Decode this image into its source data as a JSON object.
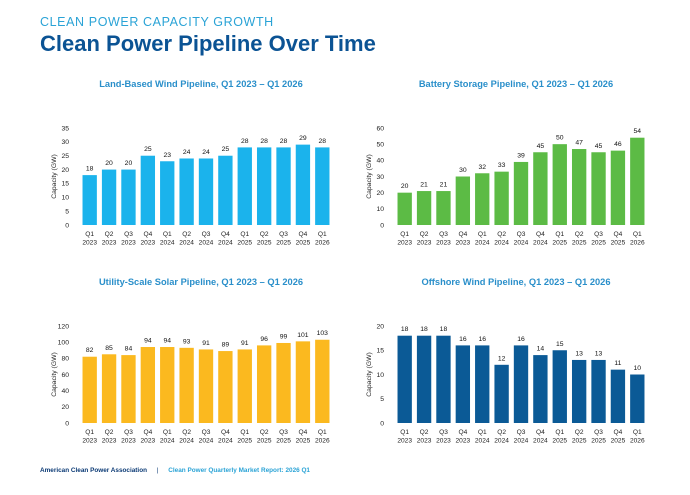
{
  "header": {
    "kicker": "CLEAN POWER CAPACITY GROWTH",
    "title": "Clean Power Pipeline Over Time"
  },
  "footer": {
    "org": "American Clean Power Association",
    "separator": "|",
    "report": "Clean Power Quarterly Market Report: 2026 Q1"
  },
  "chart_data": [
    {
      "type": "bar",
      "title": "Land-Based Wind Pipeline, Q1 2023 – Q1 2026",
      "ylabel": "Capacity (GW)",
      "xlabel": "",
      "ylim": [
        0,
        35
      ],
      "yticks": [
        0,
        5,
        10,
        15,
        20,
        25,
        30,
        35
      ],
      "grid": false,
      "color": "#1bb3ec",
      "categories": [
        [
          "Q1",
          "2023"
        ],
        [
          "Q2",
          "2023"
        ],
        [
          "Q3",
          "2023"
        ],
        [
          "Q4",
          "2023"
        ],
        [
          "Q1",
          "2024"
        ],
        [
          "Q2",
          "2024"
        ],
        [
          "Q3",
          "2024"
        ],
        [
          "Q4",
          "2024"
        ],
        [
          "Q1",
          "2025"
        ],
        [
          "Q2",
          "2025"
        ],
        [
          "Q3",
          "2025"
        ],
        [
          "Q4",
          "2025"
        ],
        [
          "Q1",
          "2026"
        ]
      ],
      "values": [
        18,
        20,
        20,
        25,
        23,
        24,
        24,
        25,
        28,
        28,
        28,
        29,
        28
      ]
    },
    {
      "type": "bar",
      "title": "Battery Storage Pipeline, Q1 2023 – Q1 2026",
      "ylabel": "Capacity (GW)",
      "xlabel": "",
      "ylim": [
        0,
        60
      ],
      "yticks": [
        0,
        10,
        20,
        30,
        40,
        50,
        60
      ],
      "grid": false,
      "color": "#5cbb45",
      "categories": [
        [
          "Q1",
          "2023"
        ],
        [
          "Q2",
          "2023"
        ],
        [
          "Q3",
          "2023"
        ],
        [
          "Q4",
          "2023"
        ],
        [
          "Q1",
          "2024"
        ],
        [
          "Q2",
          "2024"
        ],
        [
          "Q3",
          "2024"
        ],
        [
          "Q4",
          "2024"
        ],
        [
          "Q1",
          "2025"
        ],
        [
          "Q2",
          "2025"
        ],
        [
          "Q3",
          "2025"
        ],
        [
          "Q4",
          "2025"
        ],
        [
          "Q1",
          "2026"
        ]
      ],
      "values": [
        20,
        21,
        21,
        30,
        32,
        33,
        39,
        45,
        50,
        47,
        45,
        46,
        54
      ]
    },
    {
      "type": "bar",
      "title": "Utility-Scale Solar Pipeline, Q1 2023 – Q1 2026",
      "ylabel": "Capacity (GW)",
      "xlabel": "",
      "ylim": [
        0,
        120
      ],
      "yticks": [
        0,
        20,
        40,
        60,
        80,
        100,
        120
      ],
      "grid": false,
      "color": "#fbb91f",
      "categories": [
        [
          "Q1",
          "2023"
        ],
        [
          "Q2",
          "2023"
        ],
        [
          "Q3",
          "2023"
        ],
        [
          "Q4",
          "2023"
        ],
        [
          "Q1",
          "2024"
        ],
        [
          "Q2",
          "2024"
        ],
        [
          "Q3",
          "2024"
        ],
        [
          "Q4",
          "2024"
        ],
        [
          "Q1",
          "2025"
        ],
        [
          "Q2",
          "2025"
        ],
        [
          "Q3",
          "2025"
        ],
        [
          "Q4",
          "2025"
        ],
        [
          "Q1",
          "2026"
        ]
      ],
      "values": [
        82,
        85,
        84,
        94,
        94,
        93,
        91,
        89,
        91,
        96,
        99,
        101,
        103
      ]
    },
    {
      "type": "bar",
      "title": "Offshore Wind Pipeline, Q1 2023 – Q1 2026",
      "ylabel": "Capacity (GW)",
      "xlabel": "",
      "ylim": [
        0,
        20
      ],
      "yticks": [
        0,
        5,
        10,
        15,
        20
      ],
      "grid": false,
      "color": "#0b5a96",
      "categories": [
        [
          "Q1",
          "2023"
        ],
        [
          "Q2",
          "2023"
        ],
        [
          "Q3",
          "2023"
        ],
        [
          "Q4",
          "2023"
        ],
        [
          "Q1",
          "2024"
        ],
        [
          "Q2",
          "2024"
        ],
        [
          "Q3",
          "2024"
        ],
        [
          "Q4",
          "2024"
        ],
        [
          "Q1",
          "2025"
        ],
        [
          "Q2",
          "2025"
        ],
        [
          "Q3",
          "2025"
        ],
        [
          "Q4",
          "2025"
        ],
        [
          "Q1",
          "2026"
        ]
      ],
      "values": [
        18,
        18,
        18,
        16,
        16,
        12,
        16,
        14,
        15,
        13,
        13,
        11,
        10
      ]
    }
  ]
}
